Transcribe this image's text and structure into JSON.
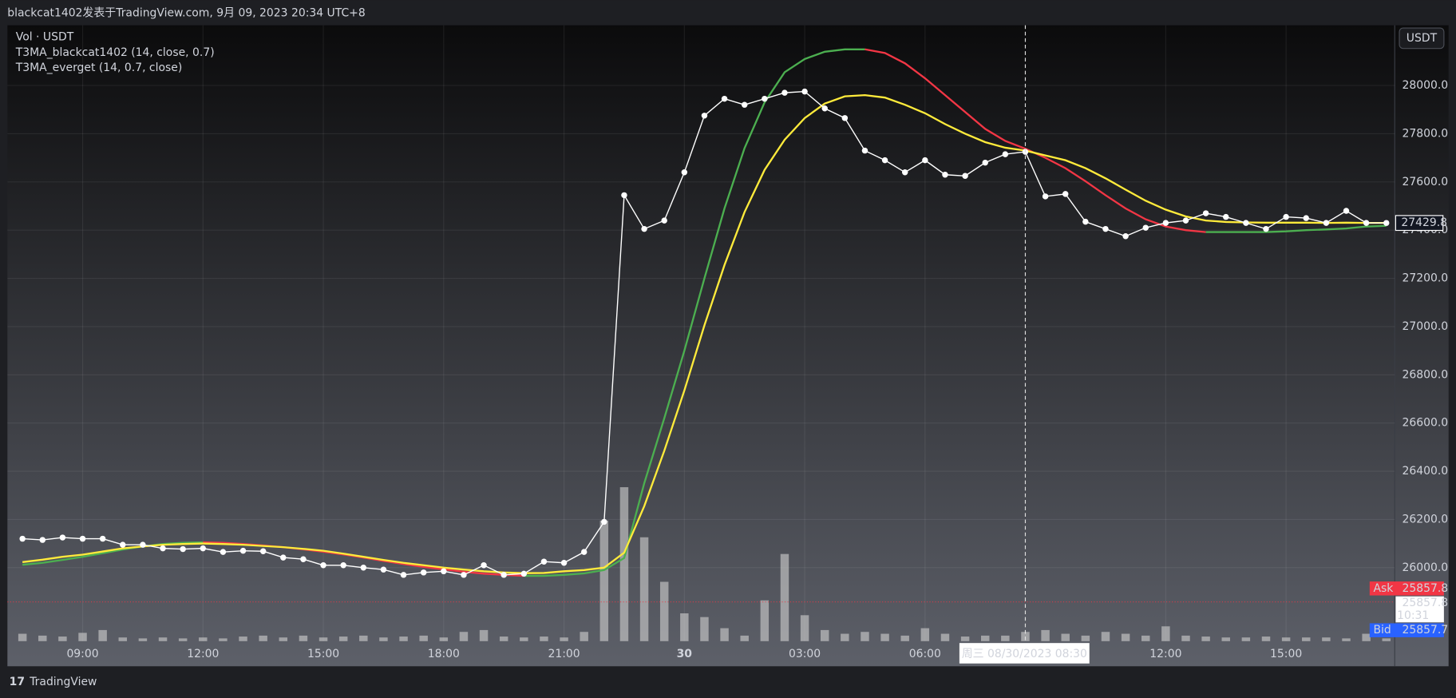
{
  "header": "blackcat1402发表于TradingView.com, 9月 09, 2023 20:34 UTC+8",
  "footer": "TradingView",
  "chart_data": {
    "type": "line",
    "currency_button": "USDT",
    "categories": [
      null,
      null,
      null,
      "09:00",
      null,
      null,
      null,
      null,
      null,
      "12:00",
      null,
      null,
      null,
      null,
      null,
      "15:00",
      null,
      null,
      null,
      null,
      null,
      "18:00",
      null,
      null,
      null,
      null,
      null,
      "21:00",
      null,
      null,
      null,
      null,
      null,
      "30",
      null,
      null,
      null,
      null,
      null,
      "03:00",
      null,
      null,
      null,
      null,
      null,
      "06:00",
      null,
      null,
      null,
      null,
      null,
      null,
      null,
      null,
      null,
      null,
      null,
      "12:00",
      null,
      null,
      null,
      null,
      null,
      "15:00",
      null,
      null,
      null,
      null,
      null
    ],
    "series": [
      {
        "type": "line",
        "color": "#ffffff",
        "markers": true,
        "values": [
          26120,
          26115,
          26125,
          26120,
          26120,
          26095,
          26095,
          26080,
          26077,
          26080,
          26065,
          26070,
          26068,
          26042,
          26035,
          26010,
          26010,
          26000,
          25992,
          25970,
          25980,
          25985,
          25970,
          26010,
          25970,
          25975,
          26025,
          26020,
          26065,
          26190,
          27545,
          27405,
          27440,
          27640,
          27875,
          27945,
          27920,
          27945,
          27970,
          27975,
          27905,
          27865,
          27730,
          27690,
          27640,
          27690,
          27630,
          27625,
          27680,
          27715,
          27725,
          27540,
          27550,
          27435,
          27405,
          27375,
          27410,
          27430,
          27440,
          27470,
          27455,
          27430,
          27405,
          27455,
          27450,
          27430,
          27480,
          27430,
          27429.8
        ]
      },
      {
        "name": "Vol · USDT",
        "type": "bar",
        "axis": "volume",
        "color": "#c8c8c8",
        "values": [
          8,
          6,
          5,
          9,
          12,
          4,
          3,
          4,
          3,
          4,
          3,
          5,
          6,
          4,
          6,
          4,
          5,
          6,
          4,
          5,
          6,
          4,
          10,
          12,
          5,
          4,
          5,
          4,
          10,
          130,
          166,
          112,
          64,
          30,
          26,
          14,
          6,
          44,
          94,
          28,
          12,
          8,
          10,
          8,
          6,
          14,
          8,
          5,
          6,
          6,
          10,
          12,
          8,
          6,
          10,
          8,
          6,
          16,
          6,
          5,
          4,
          4,
          5,
          4,
          4,
          4,
          3,
          8,
          3
        ]
      },
      {
        "name": "T3MA_blackcat1402 (14, close, 0.7)",
        "type": "line",
        "color": "#4caf50",
        "down_color": "#f23645",
        "values": [
          26012,
          26020,
          26032,
          26045,
          26060,
          26075,
          26088,
          26098,
          26103,
          26105,
          26103,
          26098,
          26092,
          26085,
          26076,
          26066,
          26055,
          26042,
          26028,
          26015,
          26003,
          25993,
          25983,
          25975,
          25970,
          25966,
          25966,
          25970,
          25976,
          25990,
          26040,
          26350,
          26620,
          26900,
          27200,
          27490,
          27740,
          27930,
          28055,
          28110,
          28140,
          28150,
          28150,
          28135,
          28092,
          28030,
          27960,
          27890,
          27820,
          27770,
          27738,
          27700,
          27657,
          27603,
          27545,
          27490,
          27445,
          27415,
          27400,
          27392,
          27392,
          27392,
          27392,
          27395,
          27400,
          27403,
          27407,
          27415,
          27418
        ]
      },
      {
        "name": "T3MA_everget (14, 0.7, close)",
        "type": "line",
        "color": "#ffeb3b",
        "values": [
          26023,
          26033,
          26045,
          26054,
          26067,
          26080,
          26088,
          26095,
          26098,
          26100,
          26098,
          26095,
          26090,
          26085,
          26078,
          26070,
          26058,
          26045,
          26032,
          26020,
          26010,
          26000,
          25992,
          25985,
          25980,
          25977,
          25978,
          25985,
          25990,
          26000,
          26062,
          26255,
          26485,
          26735,
          27005,
          27255,
          27475,
          27650,
          27775,
          27865,
          27925,
          27955,
          27960,
          27950,
          27920,
          27885,
          27840,
          27800,
          27765,
          27742,
          27730,
          27710,
          27690,
          27657,
          27615,
          27568,
          27522,
          27485,
          27457,
          27440,
          27434,
          27432,
          27431,
          27431,
          27431,
          27430,
          27431,
          27430,
          27430
        ]
      }
    ],
    "ylim": [
      25695,
      28250
    ],
    "yticks": [
      {
        "value": 26000,
        "label": "26000.0"
      },
      {
        "value": 26200,
        "label": "26200.0"
      },
      {
        "value": 26400,
        "label": "26400.0"
      },
      {
        "value": 26600,
        "label": "26600.0"
      },
      {
        "value": 26800,
        "label": "26800.0"
      },
      {
        "value": 27000,
        "label": "27000.0"
      },
      {
        "value": 27200,
        "label": "27200.0"
      },
      {
        "value": 27400,
        "label": "27400.0"
      },
      {
        "value": 27600,
        "label": "27600.0"
      },
      {
        "value": 27800,
        "label": "27800.0"
      },
      {
        "value": 28000,
        "label": "28000.0"
      }
    ],
    "grid": true,
    "ask_label": "Ask",
    "ask": 25857.8,
    "ask_color": "#f23645",
    "bid_label": "Bid",
    "bid": 25857.7,
    "bid_color": "#2962ff",
    "last": 25857.8,
    "countdown": "10:31",
    "crosshair": {
      "category": 50,
      "label": "周三 08/30/2023  08:30"
    }
  }
}
